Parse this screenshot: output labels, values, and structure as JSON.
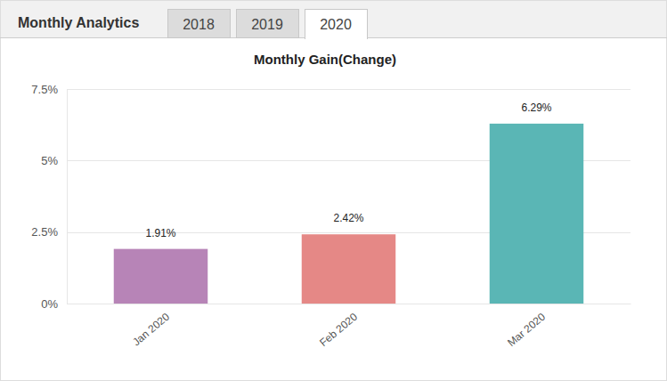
{
  "header": {
    "title": "Monthly Analytics",
    "tabs": [
      "2018",
      "2019",
      "2020"
    ],
    "active_tab": "2020"
  },
  "chart_data": {
    "type": "bar",
    "title": "Monthly Gain(Change)",
    "categories": [
      "Jan 2020",
      "Feb 2020",
      "Mar 2020"
    ],
    "values": [
      1.91,
      2.42,
      6.29
    ],
    "value_labels": [
      "1.91%",
      "2.42%",
      "6.29%"
    ],
    "colors": [
      "#b784b7",
      "#e58886",
      "#5ab6b5"
    ],
    "ylim": [
      0,
      7.5
    ],
    "yticks": [
      {
        "value": 0,
        "label": "0%"
      },
      {
        "value": 2.5,
        "label": "2.5%"
      },
      {
        "value": 5,
        "label": "5%"
      },
      {
        "value": 7.5,
        "label": "7.5%"
      }
    ],
    "grid": true,
    "data_labels": true
  }
}
